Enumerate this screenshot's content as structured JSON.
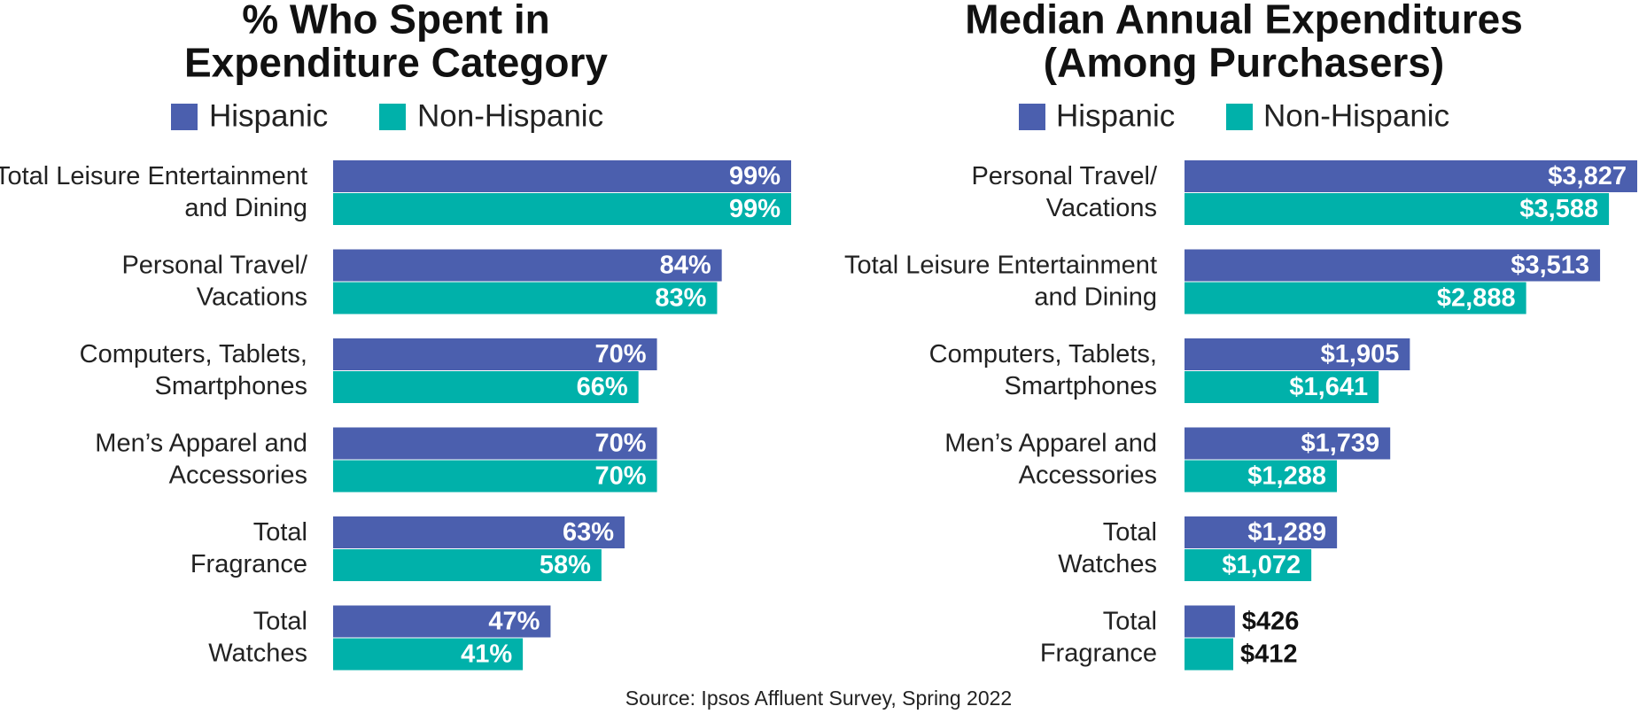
{
  "chart_data": [
    {
      "type": "bar",
      "orientation": "horizontal",
      "title": "% Who Spent in\nExpenditure Category",
      "categories": [
        "Total Leisure Entertainment\nand Dining",
        "Personal Travel/\nVacations",
        "Computers, Tablets,\nSmartphones",
        "Men’s Apparel and\nAccessories",
        "Total\nFragrance",
        "Total\nWatches"
      ],
      "series": [
        {
          "name": "Hispanic",
          "color": "#4b5fae",
          "values": [
            99,
            84,
            70,
            70,
            63,
            47
          ],
          "value_labels": [
            "99%",
            "84%",
            "70%",
            "70%",
            "63%",
            "47%"
          ]
        },
        {
          "name": "Non-Hispanic",
          "color": "#00b1aa",
          "values": [
            99,
            83,
            66,
            70,
            58,
            41
          ],
          "value_labels": [
            "99%",
            "83%",
            "66%",
            "70%",
            "58%",
            "41%"
          ]
        }
      ]
    },
    {
      "type": "bar",
      "orientation": "horizontal",
      "title": "Median Annual Expenditures\n(Among Purchasers)",
      "categories": [
        "Personal Travel/\nVacations",
        "Total Leisure Entertainment\nand Dining",
        "Computers, Tablets,\nSmartphones",
        "Men’s Apparel and\nAccessories",
        "Total\nWatches",
        "Total\nFragrance"
      ],
      "series": [
        {
          "name": "Hispanic",
          "color": "#4b5fae",
          "values": [
            3827,
            3513,
            1905,
            1739,
            1289,
            426
          ],
          "value_labels": [
            "$3,827",
            "$3,513",
            "$1,905",
            "$1,739",
            "$1,289",
            "$426"
          ]
        },
        {
          "name": "Non-Hispanic",
          "color": "#00b1aa",
          "values": [
            3588,
            2888,
            1641,
            1288,
            1072,
            412
          ],
          "value_labels": [
            "$3,588",
            "$2,888",
            "$1,641",
            "$1,288",
            "$1,072",
            "$412"
          ]
        }
      ]
    }
  ],
  "source": "Source: Ipsos Affluent Survey, Spring 2022"
}
